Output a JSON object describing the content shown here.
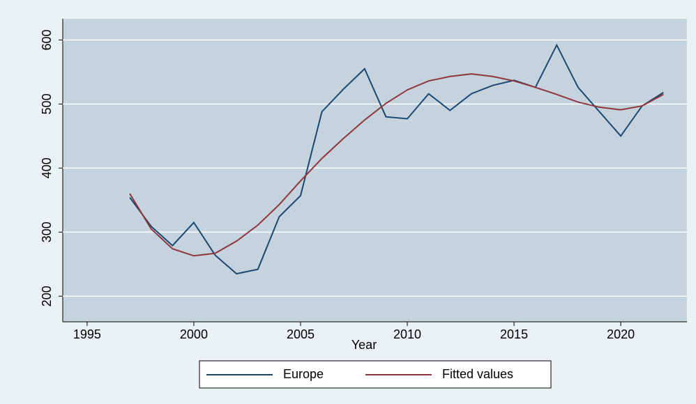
{
  "chart_data": {
    "type": "line",
    "xlabel": "Year",
    "x": [
      1997,
      1998,
      1999,
      2000,
      2001,
      2002,
      2003,
      2004,
      2005,
      2006,
      2007,
      2008,
      2009,
      2010,
      2011,
      2012,
      2013,
      2014,
      2015,
      2016,
      2017,
      2018,
      2019,
      2020,
      2021,
      2022
    ],
    "series": [
      {
        "name": "Europe",
        "color": "#1a476f",
        "values": [
          354,
          309,
          279,
          315,
          264,
          235,
          242,
          324,
          357,
          488,
          523,
          555,
          480,
          477,
          516,
          490,
          516,
          529,
          537,
          526,
          592,
          526,
          488,
          450,
          497,
          518
        ]
      },
      {
        "name": "Fitted values",
        "color": "#90353b",
        "values": [
          360,
          305,
          274,
          263,
          267,
          286,
          311,
          343,
          380,
          415,
          446,
          475,
          501,
          522,
          536,
          543,
          547,
          543,
          536,
          526,
          515,
          503,
          495,
          491,
          497,
          515
        ]
      }
    ],
    "xlim": [
      1993.86,
      2023.1
    ],
    "xticks": [
      1995,
      2000,
      2005,
      2010,
      2015,
      2020
    ],
    "ylim": [
      160,
      633
    ],
    "yticks": [
      200,
      300,
      400,
      500,
      600
    ],
    "grid": true,
    "legend": "bottom"
  }
}
